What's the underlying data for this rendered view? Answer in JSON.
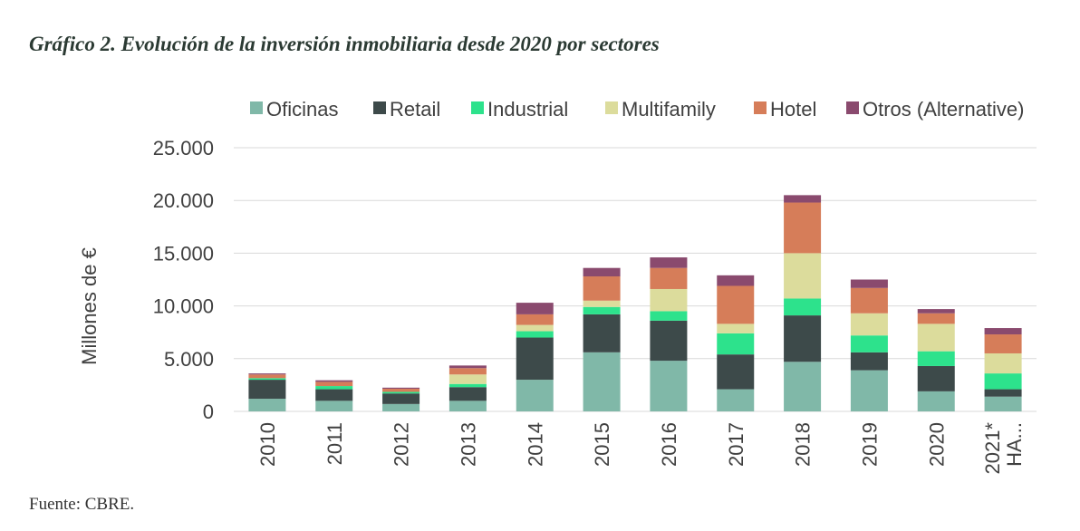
{
  "title": "Gráfico 2. Evolución de la inversión inmobiliaria desde 2020 por sectores",
  "source": "Fuente: CBRE.",
  "chart_data": {
    "type": "bar",
    "stacked": true,
    "title": "Gráfico 2. Evolución de la inversión inmobiliaria desde 2020 por sectores",
    "xlabel": "",
    "ylabel": "Millones de €",
    "ylim": [
      0,
      25000
    ],
    "yticks": [
      "0",
      "5.000",
      "10.000",
      "15.000",
      "20.000",
      "25.000"
    ],
    "ytick_values": [
      0,
      5000,
      10000,
      15000,
      20000,
      25000
    ],
    "grid": "horizontal",
    "legend_position": "top",
    "categories": [
      "2010",
      "2011",
      "2012",
      "2013",
      "2014",
      "2015",
      "2016",
      "2017",
      "2018",
      "2019",
      "2020",
      "2021* HA..."
    ],
    "category_lines": [
      [
        "2010"
      ],
      [
        "2011"
      ],
      [
        "2012"
      ],
      [
        "2013"
      ],
      [
        "2014"
      ],
      [
        "2015"
      ],
      [
        "2016"
      ],
      [
        "2017"
      ],
      [
        "2018"
      ],
      [
        "2019"
      ],
      [
        "2020"
      ],
      [
        "2021*",
        "HA..."
      ]
    ],
    "series": [
      {
        "name": "Oficinas",
        "color": "#80b8a8",
        "values": [
          1200,
          1000,
          700,
          1000,
          3000,
          5600,
          4800,
          2100,
          4700,
          3900,
          1900,
          1400
        ]
      },
      {
        "name": "Retail",
        "color": "#3d4a4a",
        "values": [
          1800,
          1100,
          1000,
          1300,
          4000,
          3600,
          3800,
          3300,
          4400,
          1700,
          2400,
          700
        ]
      },
      {
        "name": "Industrial",
        "color": "#2de28c",
        "values": [
          150,
          300,
          150,
          300,
          600,
          700,
          900,
          2000,
          1600,
          1600,
          1400,
          1500
        ]
      },
      {
        "name": "Multifamily",
        "color": "#dcdc9c",
        "values": [
          0,
          0,
          0,
          900,
          600,
          600,
          2100,
          900,
          4300,
          2100,
          2600,
          1900
        ]
      },
      {
        "name": "Hotel",
        "color": "#d67d59",
        "values": [
          350,
          400,
          300,
          600,
          1000,
          2300,
          2000,
          3600,
          4800,
          2400,
          1000,
          1800
        ]
      },
      {
        "name": "Otros (Alternative)",
        "color": "#8a4a6e",
        "values": [
          100,
          150,
          100,
          250,
          1100,
          800,
          1000,
          1000,
          700,
          800,
          400,
          600
        ]
      }
    ]
  }
}
